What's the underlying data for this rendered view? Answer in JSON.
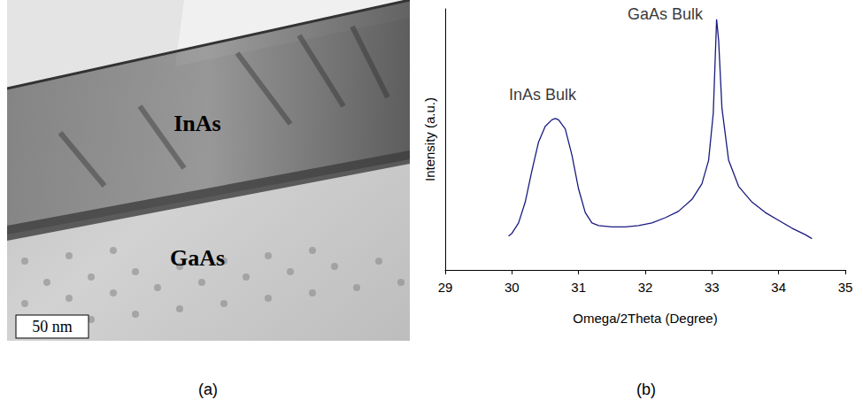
{
  "panel_labels": [
    "(a)",
    "(b)"
  ],
  "micrograph": {
    "labels": [
      "InAs",
      "GaAs"
    ],
    "scale_bar": "50 nm"
  },
  "chart_data": {
    "type": "line",
    "x_label": "Omega/2Theta (Degree)",
    "y_label": "Intensity (a.u.)",
    "x": [
      29.95,
      30.0,
      30.1,
      30.2,
      30.3,
      30.4,
      30.5,
      30.6,
      30.65,
      30.7,
      30.8,
      30.9,
      31.0,
      31.1,
      31.2,
      31.3,
      31.5,
      31.7,
      31.9,
      32.1,
      32.3,
      32.5,
      32.7,
      32.85,
      32.95,
      33.02,
      33.07,
      33.1,
      33.15,
      33.25,
      33.4,
      33.6,
      33.8,
      34.0,
      34.2,
      34.4,
      34.5
    ],
    "values": [
      13,
      14,
      18,
      26,
      38,
      49,
      55,
      57.5,
      58,
      57.5,
      54,
      44,
      31,
      22,
      18,
      17,
      16.5,
      16.5,
      17,
      18,
      20,
      22.5,
      27,
      33,
      42,
      60,
      96,
      88,
      62,
      42,
      32,
      26,
      22,
      19,
      16,
      13.5,
      12
    ],
    "color": "#1a1a80",
    "marker": "none",
    "line_style": "solid",
    "xlim": [
      29,
      35
    ],
    "xticks": [
      29,
      30,
      31,
      32,
      33,
      34,
      35
    ],
    "ylim": [
      0,
      100
    ],
    "grid": false,
    "tick_labels": "x",
    "annotations": [
      {
        "text": "InAs Bulk",
        "x": 30.46,
        "y": 67
      },
      {
        "text": "GaAs Bulk",
        "x": 32.3,
        "y": 98
      }
    ]
  }
}
